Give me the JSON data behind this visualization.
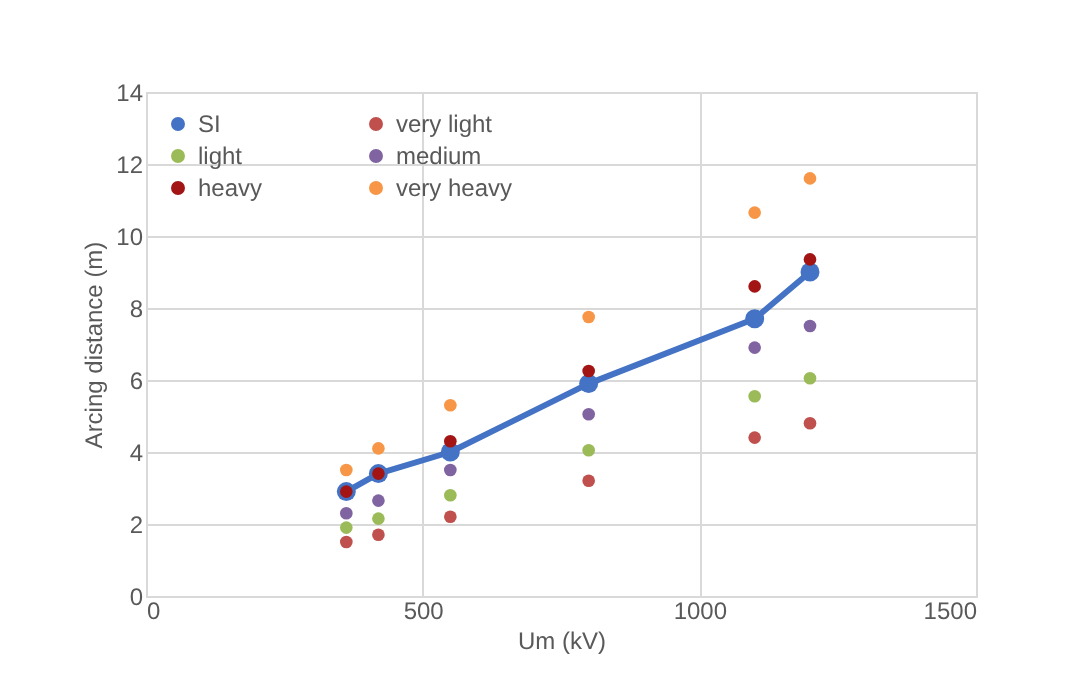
{
  "chart_data": {
    "type": "scatter",
    "xlabel": "Um (kV)",
    "ylabel": "Arcing distance (m)",
    "x": [
      362,
      420,
      550,
      800,
      1100,
      1200
    ],
    "series": [
      {
        "name": "SI",
        "type": "line",
        "color": "#4472c4",
        "values": [
          2.9,
          3.4,
          4.0,
          5.9,
          7.7,
          9.0
        ]
      },
      {
        "name": "very light",
        "color": "#c0504d",
        "values": [
          1.5,
          1.7,
          2.2,
          3.2,
          4.4,
          4.8
        ]
      },
      {
        "name": "light",
        "color": "#9bbb59",
        "values": [
          1.9,
          2.15,
          2.8,
          4.05,
          5.55,
          6.05
        ]
      },
      {
        "name": "medium",
        "color": "#8064a2",
        "values": [
          2.3,
          2.65,
          3.5,
          5.05,
          6.9,
          7.5
        ]
      },
      {
        "name": "heavy",
        "color": "#a31515",
        "values": [
          2.9,
          3.4,
          4.3,
          6.25,
          8.6,
          9.35
        ]
      },
      {
        "name": "very heavy",
        "color": "#f79646",
        "values": [
          3.5,
          4.1,
          5.3,
          7.75,
          10.65,
          11.6
        ]
      }
    ],
    "xlim": [
      0,
      1500
    ],
    "xticks": [
      0,
      500,
      {
        "value": 1000,
        "label": "1000"
      },
      {
        "value": 1500,
        "label": "1500"
      }
    ],
    "ylim": [
      0,
      14
    ],
    "yticks": [
      0,
      2,
      4,
      6,
      8,
      10,
      12,
      14
    ],
    "grid": true,
    "legend": "top left",
    "marker": "circle"
  }
}
